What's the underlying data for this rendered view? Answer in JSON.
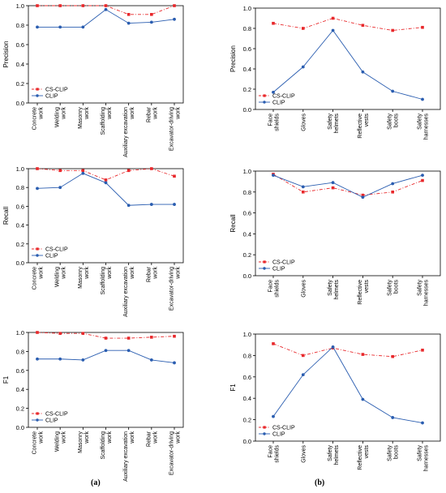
{
  "captions": {
    "left": "(a)",
    "right": "(b)"
  },
  "colors": {
    "cs_clip": "#e8282b",
    "clip": "#2a5db0"
  },
  "chart_data": [
    {
      "type": "line",
      "title": "",
      "xlabel": "",
      "ylabel": "Precision",
      "ylim": [
        0,
        1.0
      ],
      "yticks": [
        "0.0",
        "0.2",
        "0.4",
        "0.6",
        "0.8",
        "1.0"
      ],
      "grid": false,
      "legend": "bottom-left",
      "categories": [
        "Concrete work",
        "Welding work",
        "Masonry work",
        "Scaffolding work",
        "Auxiliary excavation work",
        "Rebar work",
        "Excavator-driving work"
      ],
      "series": [
        {
          "name": "CS-CLIP",
          "values": [
            1.0,
            1.0,
            1.0,
            1.0,
            0.91,
            0.91,
            1.0
          ]
        },
        {
          "name": "CLIP",
          "values": [
            0.78,
            0.78,
            0.78,
            0.96,
            0.82,
            0.83,
            0.86
          ]
        }
      ]
    },
    {
      "type": "line",
      "title": "",
      "xlabel": "",
      "ylabel": "Precision",
      "ylim": [
        0,
        1.0
      ],
      "yticks": [
        "0.0",
        "0.2",
        "0.4",
        "0.6",
        "0.8",
        "1.0"
      ],
      "grid": false,
      "legend": "bottom-left",
      "categories": [
        "Face shields",
        "Gloves",
        "Safety helmets",
        "Reflective vests",
        "Safety boots",
        "Safety harnesses"
      ],
      "series": [
        {
          "name": "CS-CLIP",
          "values": [
            0.85,
            0.8,
            0.9,
            0.83,
            0.78,
            0.81
          ]
        },
        {
          "name": "CLIP",
          "values": [
            0.17,
            0.42,
            0.78,
            0.37,
            0.18,
            0.1
          ]
        }
      ]
    },
    {
      "type": "line",
      "title": "",
      "xlabel": "",
      "ylabel": "Recall",
      "ylim": [
        0,
        1.0
      ],
      "yticks": [
        "0.0",
        "0.2",
        "0.4",
        "0.6",
        "0.8",
        "1.0"
      ],
      "grid": false,
      "legend": "bottom-left",
      "categories": [
        "Concrete work",
        "Welding work",
        "Masonry work",
        "Scaffolding work",
        "Auxiliary excavation work",
        "Rebar work",
        "Excavator-driving work"
      ],
      "series": [
        {
          "name": "CS-CLIP",
          "values": [
            1.0,
            0.98,
            0.98,
            0.88,
            0.98,
            1.0,
            0.92
          ]
        },
        {
          "name": "CLIP",
          "values": [
            0.79,
            0.8,
            0.95,
            0.85,
            0.61,
            0.62,
            0.62
          ]
        }
      ]
    },
    {
      "type": "line",
      "title": "",
      "xlabel": "",
      "ylabel": "Recall",
      "ylim": [
        0,
        1.0
      ],
      "yticks": [
        "0.0",
        "0.2",
        "0.4",
        "0.6",
        "0.8",
        "1.0"
      ],
      "grid": false,
      "legend": "bottom-left",
      "categories": [
        "Face shields",
        "Gloves",
        "Safety helmets",
        "Reflective vests",
        "Safety boots",
        "Safety harnesses"
      ],
      "series": [
        {
          "name": "CS-CLIP",
          "values": [
            0.97,
            0.8,
            0.84,
            0.77,
            0.8,
            0.91
          ]
        },
        {
          "name": "CLIP",
          "values": [
            0.96,
            0.85,
            0.89,
            0.75,
            0.88,
            0.96
          ]
        }
      ]
    },
    {
      "type": "line",
      "title": "",
      "xlabel": "",
      "ylabel": "F1",
      "ylim": [
        0,
        1.0
      ],
      "yticks": [
        "0.0",
        "0.2",
        "0.4",
        "0.6",
        "0.8",
        "1.0"
      ],
      "grid": false,
      "legend": "bottom-left",
      "categories": [
        "Concrete work",
        "Welding work",
        "Masonry work",
        "Scaffolding work",
        "Auxiliary excavation work",
        "Rebar work",
        "Excavator-driving work"
      ],
      "series": [
        {
          "name": "CS-CLIP",
          "values": [
            1.0,
            0.99,
            0.99,
            0.94,
            0.94,
            0.95,
            0.96
          ]
        },
        {
          "name": "CLIP",
          "values": [
            0.72,
            0.72,
            0.71,
            0.81,
            0.81,
            0.71,
            0.68
          ]
        }
      ]
    },
    {
      "type": "line",
      "title": "",
      "xlabel": "",
      "ylabel": "F1",
      "ylim": [
        0,
        1.0
      ],
      "yticks": [
        "0.0",
        "0.2",
        "0.4",
        "0.6",
        "0.8",
        "1.0"
      ],
      "grid": false,
      "legend": "bottom-left",
      "categories": [
        "Face shields",
        "Gloves",
        "Safety helmets",
        "Reflective vests",
        "Safety boots",
        "Safety harnesses"
      ],
      "series": [
        {
          "name": "CS-CLIP",
          "values": [
            0.91,
            0.8,
            0.87,
            0.81,
            0.79,
            0.85
          ]
        },
        {
          "name": "CLIP",
          "values": [
            0.23,
            0.62,
            0.88,
            0.39,
            0.22,
            0.17
          ]
        }
      ]
    }
  ]
}
